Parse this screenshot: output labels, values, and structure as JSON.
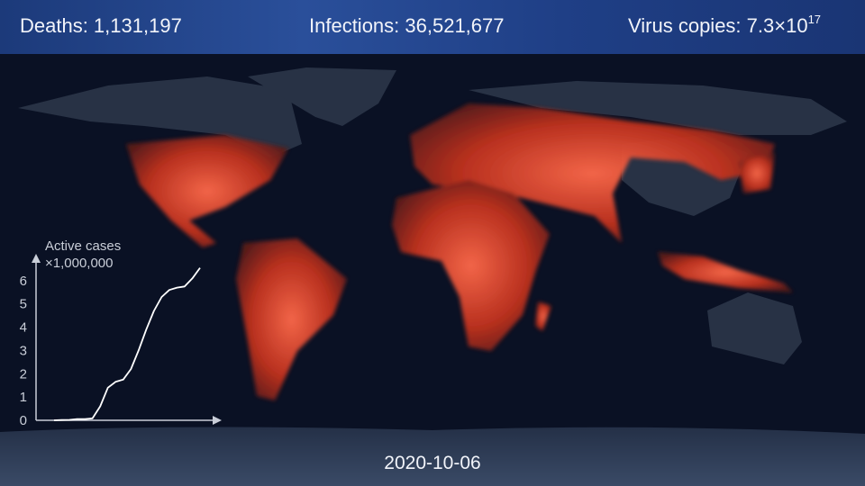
{
  "header": {
    "deaths": "Deaths: 1,131,197",
    "infections": "Infections: 36,521,677",
    "virus_copies": "Virus copies: 7.3×10",
    "virus_copies_exponent": "17"
  },
  "date": "2020-10-06",
  "chart_data": {
    "type": "line",
    "y_label": "Active cases",
    "y_unit_label": "×1,000,000",
    "categories": [
      null,
      null,
      null,
      null,
      null,
      null,
      null,
      null,
      null,
      null,
      null,
      null,
      null,
      null,
      null,
      null,
      null,
      null,
      null,
      null
    ],
    "values": [
      0,
      0.01,
      0.02,
      0.05,
      0.05,
      0.08,
      0.6,
      1.4,
      1.65,
      1.75,
      2.2,
      3.0,
      3.9,
      4.7,
      5.3,
      5.6,
      5.7,
      5.75,
      6.1,
      6.55
    ],
    "color": "#ffffff",
    "ylim": [
      0,
      7
    ],
    "yticks": [
      0,
      1,
      2,
      3,
      4,
      5,
      6
    ],
    "grid": false
  }
}
